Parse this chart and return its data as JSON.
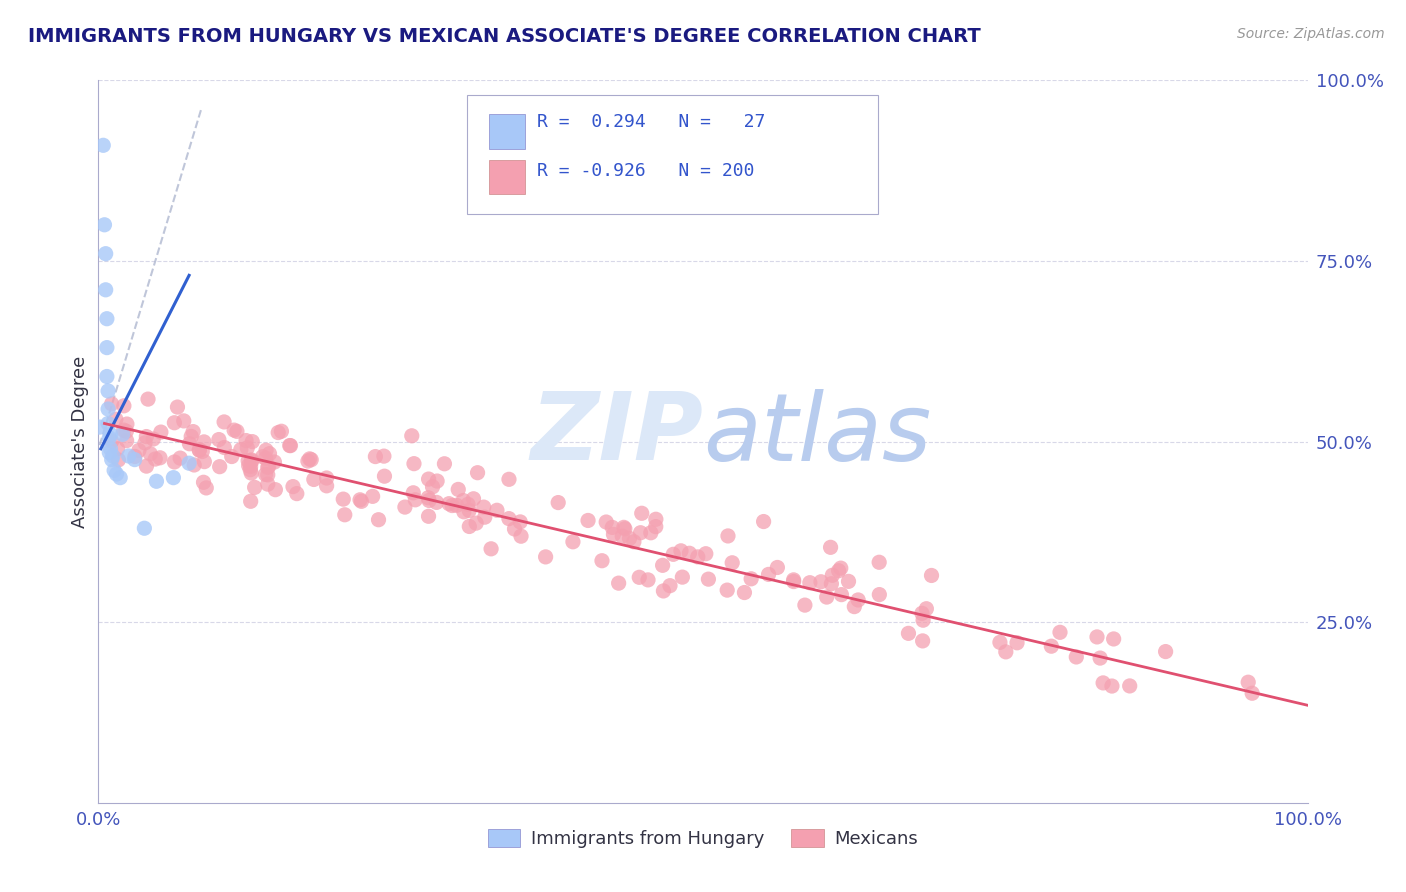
{
  "title": "IMMIGRANTS FROM HUNGARY VS MEXICAN ASSOCIATE'S DEGREE CORRELATION CHART",
  "source": "Source: ZipAtlas.com",
  "ylabel": "Associate's Degree",
  "legend_r1": "R =  0.294",
  "legend_n1": "N =  27",
  "legend_r2": "R = -0.926",
  "legend_n2": "N = 200",
  "blue_color": "#a8c8f8",
  "pink_color": "#f4a0b0",
  "blue_line_color": "#3060d0",
  "pink_line_color": "#e05070",
  "dashed_line_color": "#b0b8d0",
  "watermark_color": "#ccd8f0",
  "title_color": "#1a1a80",
  "axis_label_color": "#4455bb",
  "legend_text_color": "#3355cc",
  "grid_color": "#d8d8e8",
  "bg_color": "#ffffff",
  "blue_dot_edge": "#7aabf0",
  "pink_dot_edge": "#f080a0"
}
